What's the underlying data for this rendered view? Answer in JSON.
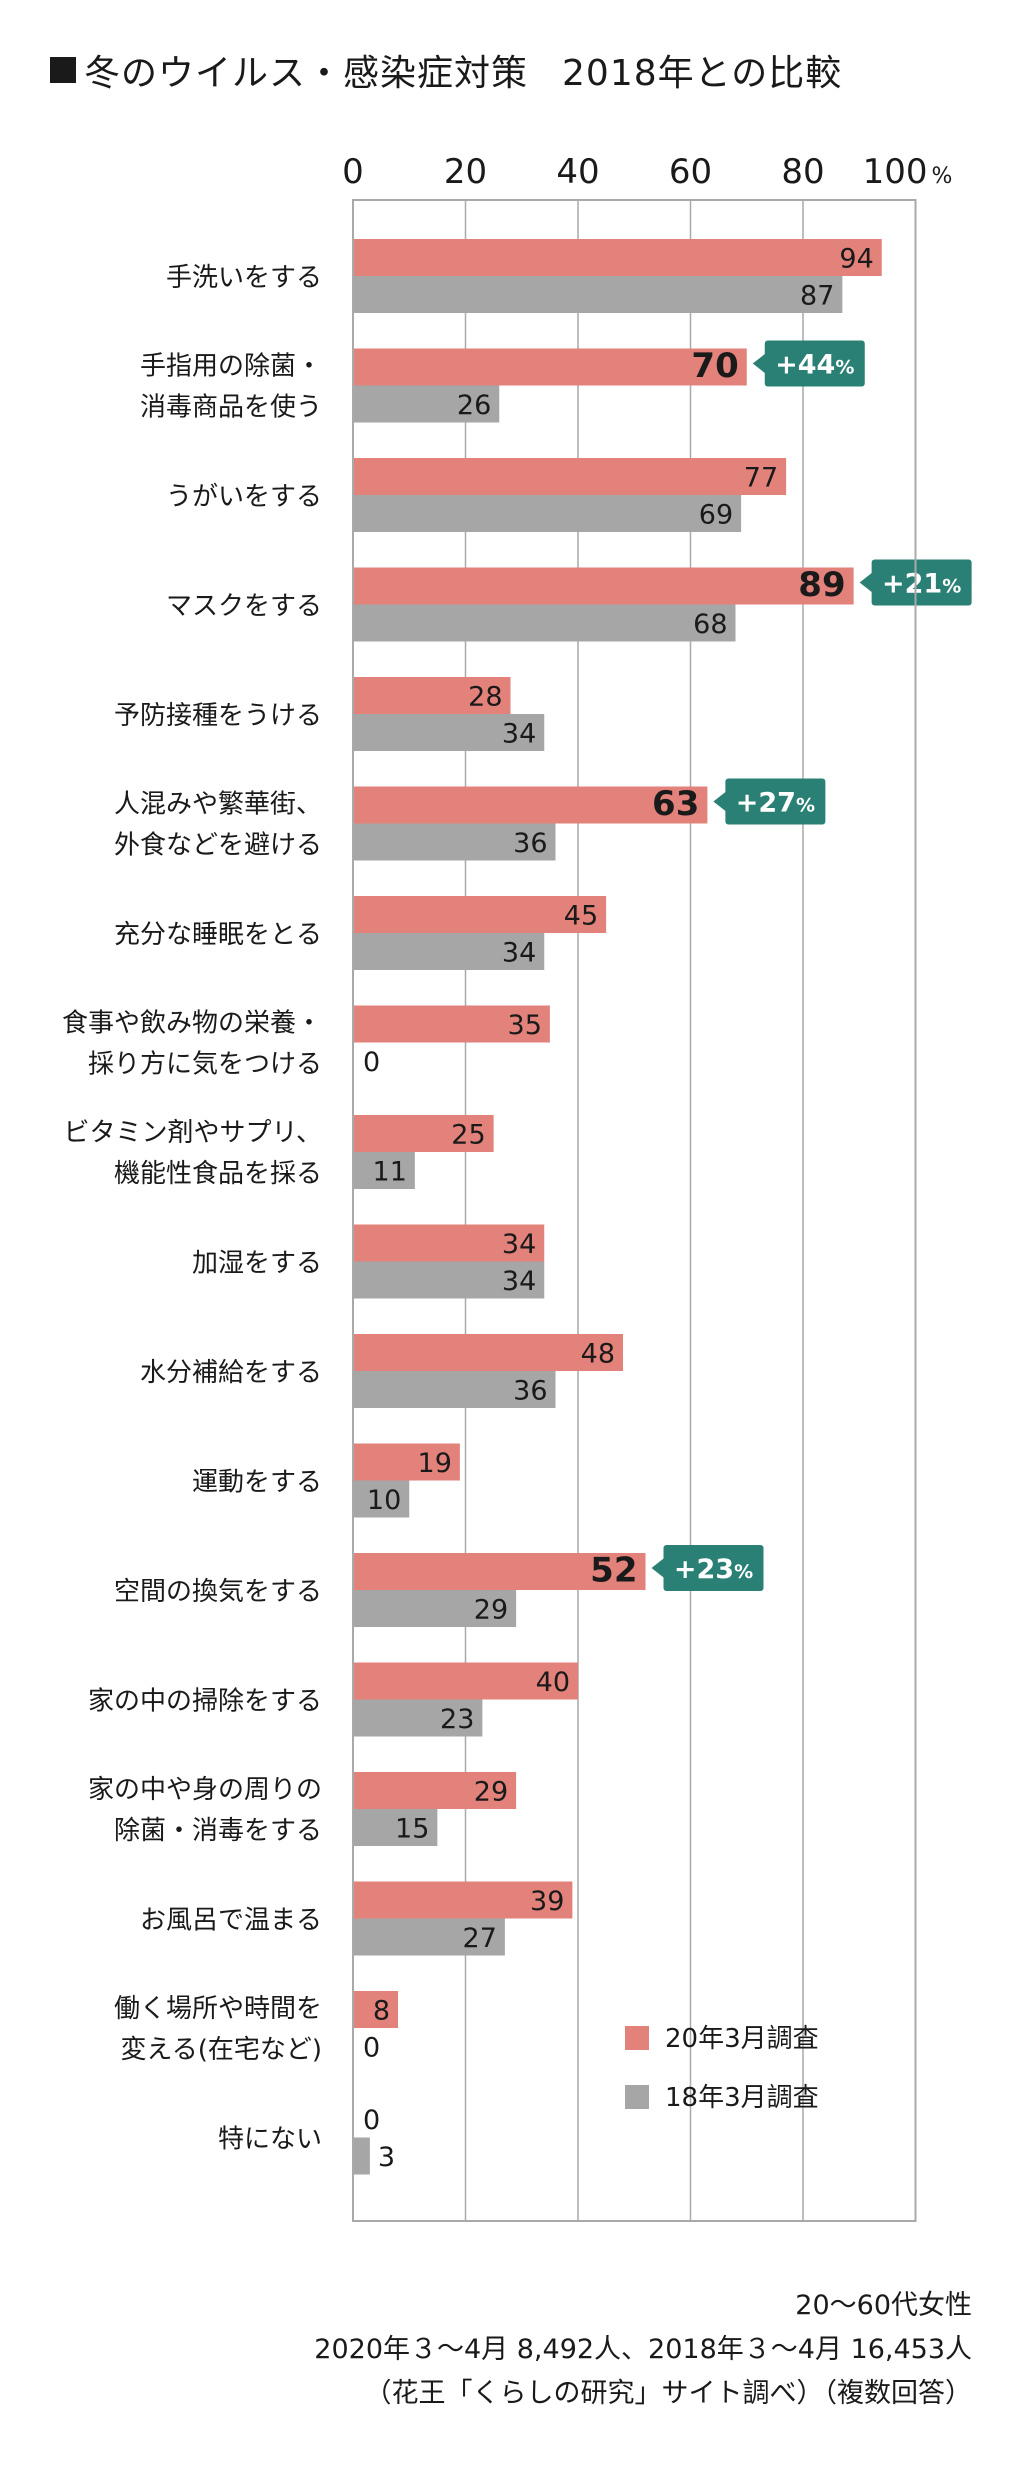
{
  "title": {
    "text": "冬のウイルス・感染症対策",
    "subtitle": "2018年との比較"
  },
  "chart_data": {
    "type": "bar",
    "orientation": "horizontal",
    "xlim": [
      0,
      100
    ],
    "x_ticks": [
      "0",
      "20",
      "40",
      "60",
      "80",
      "100"
    ],
    "x_unit": "%",
    "grid": true,
    "legend_position": "bottom-right",
    "colors": {
      "series_2020": "#e3827a",
      "series_2018": "#a6a6a6",
      "diff_badge": "#2a8074",
      "grid": "#a9a9a9"
    },
    "categories": [
      [
        "手洗いをする"
      ],
      [
        "手指用の除菌・",
        "消毒商品を使う"
      ],
      [
        "うがいをする"
      ],
      [
        "マスクをする"
      ],
      [
        "予防接種をうける"
      ],
      [
        "人混みや繁華街、",
        "外食などを避ける"
      ],
      [
        "充分な睡眠をとる"
      ],
      [
        "食事や飲み物の栄養・",
        "採り方に気をつける"
      ],
      [
        "ビタミン剤やサプリ、",
        "機能性食品を採る"
      ],
      [
        "加湿をする"
      ],
      [
        "水分補給をする"
      ],
      [
        "運動をする"
      ],
      [
        "空間の換気をする"
      ],
      [
        "家の中の掃除をする"
      ],
      [
        "家の中や身の周りの",
        "除菌・消毒をする"
      ],
      [
        "お風呂で温まる"
      ],
      [
        "働く場所や時間を",
        "変える(在宅など)"
      ],
      [
        "特にない"
      ]
    ],
    "series": [
      {
        "name": "20年3月調査",
        "values": [
          94,
          70,
          77,
          89,
          28,
          63,
          45,
          35,
          25,
          34,
          48,
          19,
          52,
          40,
          29,
          39,
          8,
          0
        ]
      },
      {
        "name": "18年3月調査",
        "values": [
          87,
          26,
          69,
          68,
          34,
          36,
          34,
          0,
          11,
          34,
          36,
          10,
          29,
          23,
          15,
          27,
          0,
          3
        ]
      }
    ],
    "highlights": [
      {
        "index": 1,
        "label": "+44",
        "unit": "%"
      },
      {
        "index": 3,
        "label": "+21",
        "unit": "%"
      },
      {
        "index": 5,
        "label": "+27",
        "unit": "%"
      },
      {
        "index": 12,
        "label": "+23",
        "unit": "%"
      }
    ]
  },
  "notes": [
    "20〜60代女性",
    "2020年３〜4月 8,492人、2018年３〜4月 16,453人",
    "（花王「くらしの研究」サイト調べ）（複数回答）"
  ]
}
